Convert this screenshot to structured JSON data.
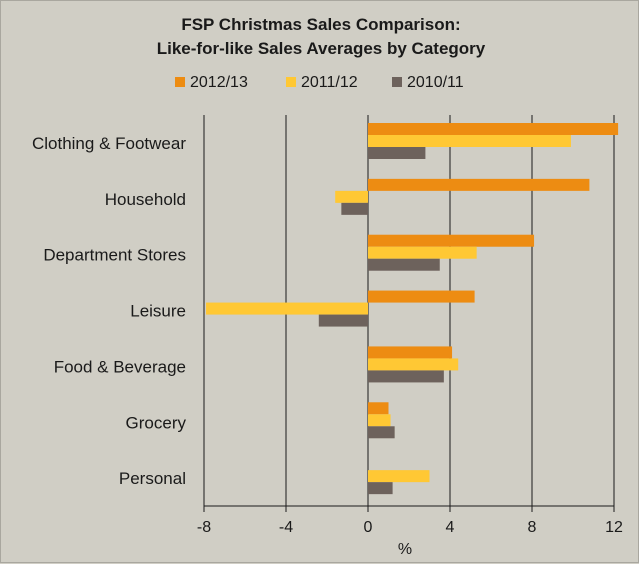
{
  "chart_data": {
    "type": "bar",
    "orientation": "horizontal",
    "title": "FSP Christmas  Sales Comparison:",
    "subtitle": "Like-for-like  Sales Averages  by Category",
    "xlabel": "%",
    "ylabel": "",
    "xlim": [
      -8,
      12
    ],
    "xticks": [
      "-8",
      "-4",
      "0",
      "4",
      "8",
      "12"
    ],
    "grid": "vertical major gridlines",
    "legend_position": "top",
    "categories": [
      "Clothing & Footwear",
      "Household",
      "Department Stores",
      "Leisure",
      "Food & Beverage",
      "Grocery",
      "Personal"
    ],
    "series": [
      {
        "name": "2012/13",
        "color": "#ed8c12",
        "values": [
          12.2,
          10.8,
          8.1,
          5.2,
          4.1,
          1.0,
          0
        ]
      },
      {
        "name": "2011/12",
        "color": "#ffc834",
        "values": [
          9.9,
          -1.6,
          5.3,
          -7.9,
          4.4,
          1.1,
          3.0
        ]
      },
      {
        "name": "2010/11",
        "color": "#6d625c",
        "values": [
          2.8,
          -1.3,
          3.5,
          -2.4,
          3.7,
          1.3,
          1.2
        ]
      }
    ]
  },
  "colors": {
    "background": "#d0cec5",
    "gridline": "#1a1a1a"
  }
}
